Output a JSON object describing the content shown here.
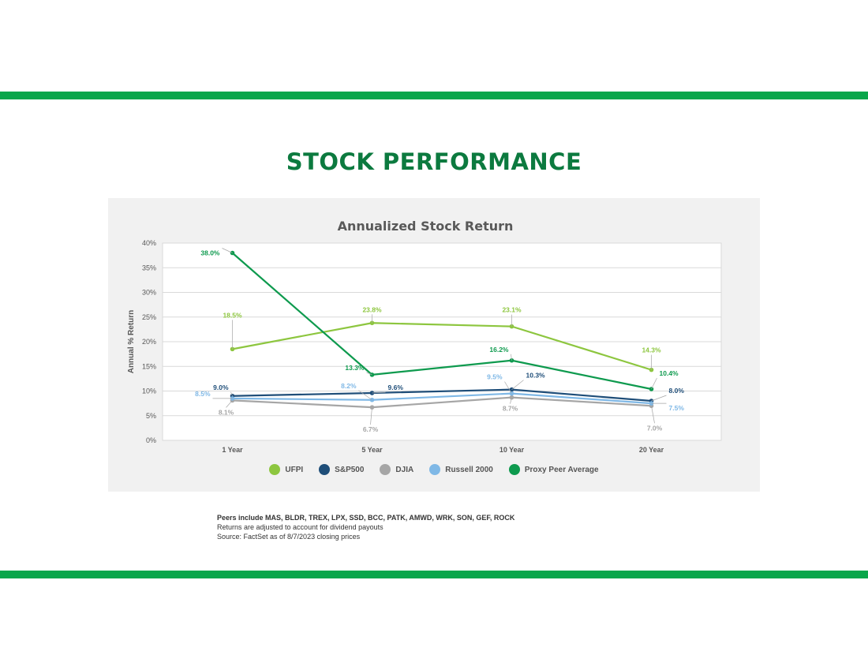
{
  "page": {
    "title": "STOCK PERFORMANCE",
    "footnotes": [
      "Peers include MAS, BLDR, TREX, LPX, SSD, BCC, PATK, AMWD, WRK, SON, GEF, ROCK",
      "Returns are adjusted to account for dividend payouts",
      "Source: FactSet as of 8/7/2023 closing prices"
    ],
    "accent_color": "#0aa64b",
    "title_color": "#0c7a3f"
  },
  "chart_data": {
    "type": "line",
    "title": "Annualized Stock Return",
    "xlabel": "",
    "ylabel": "Annual % Return",
    "categories": [
      "1 Year",
      "5 Year",
      "10 Year",
      "20 Year"
    ],
    "ylim": [
      0,
      40
    ],
    "yticks": [
      "0%",
      "5%",
      "10%",
      "15%",
      "20%",
      "25%",
      "30%",
      "35%",
      "40%"
    ],
    "grid": true,
    "legend_position": "bottom",
    "series": [
      {
        "name": "UFPI",
        "color": "#8dc63f",
        "values": [
          18.5,
          23.8,
          23.1,
          14.3
        ],
        "labels": [
          "18.5%",
          "23.8%",
          "23.1%",
          "14.3%"
        ]
      },
      {
        "name": "S&P500",
        "color": "#1f4e79",
        "values": [
          9.0,
          9.6,
          10.3,
          8.0
        ],
        "labels": [
          "9.0%",
          "9.6%",
          "10.3%",
          "8.0%"
        ]
      },
      {
        "name": "DJIA",
        "color": "#a6a6a6",
        "values": [
          8.1,
          6.7,
          8.7,
          7.0
        ],
        "labels": [
          "8.1%",
          "6.7%",
          "8.7%",
          "7.0%"
        ]
      },
      {
        "name": "Russell 2000",
        "color": "#7fb8e6",
        "values": [
          8.5,
          8.2,
          9.5,
          7.5
        ],
        "labels": [
          "8.5%",
          "8.2%",
          "9.5%",
          "7.5%"
        ]
      },
      {
        "name": "Proxy Peer Average",
        "color": "#0e9a4e",
        "values": [
          38.0,
          13.3,
          16.2,
          10.4
        ],
        "labels": [
          "38.0%",
          "13.3%",
          "16.2%",
          "10.4%"
        ]
      }
    ]
  }
}
